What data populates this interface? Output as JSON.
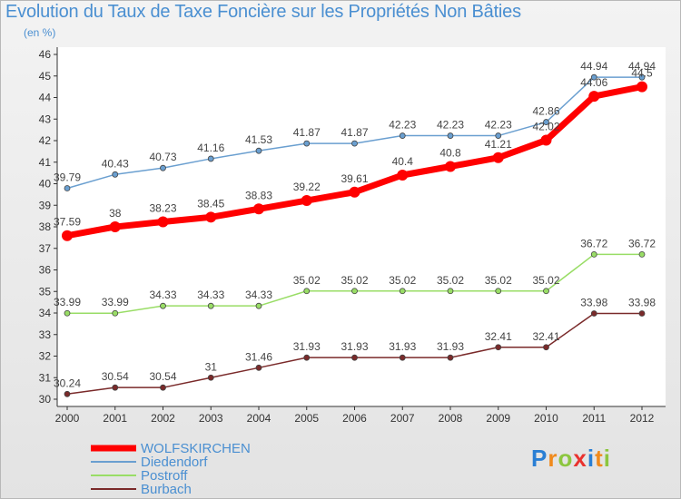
{
  "title": "Evolution du Taux de Taxe Foncière sur les Propriétés Non Bâties",
  "unit": "(en %)",
  "logo": "Proxiti",
  "chart_data": {
    "type": "line",
    "categories": [
      "2000",
      "2001",
      "2002",
      "2003",
      "2004",
      "2005",
      "2006",
      "2007",
      "2008",
      "2009",
      "2010",
      "2011",
      "2012"
    ],
    "ylim": [
      30,
      46
    ],
    "yticks": [
      30,
      31,
      32,
      33,
      34,
      35,
      36,
      37,
      38,
      39,
      40,
      41,
      42,
      43,
      44,
      45,
      46
    ],
    "grid": false,
    "legend_position": "bottom-left",
    "series": [
      {
        "name": "WOLFSKIRCHEN",
        "color": "#ff0000",
        "values": [
          37.59,
          38,
          38.23,
          38.45,
          38.83,
          39.22,
          39.61,
          40.4,
          40.8,
          41.21,
          42.02,
          44.06,
          44.5
        ]
      },
      {
        "name": "Diedendorf",
        "color": "#6a9fd0",
        "values": [
          39.79,
          40.43,
          40.73,
          41.16,
          41.53,
          41.87,
          41.87,
          42.23,
          42.23,
          42.23,
          42.86,
          44.94,
          44.94
        ]
      },
      {
        "name": "Postroff",
        "color": "#99dd66",
        "values": [
          33.99,
          33.99,
          34.33,
          34.33,
          34.33,
          35.02,
          35.02,
          35.02,
          35.02,
          35.02,
          35.02,
          36.72,
          36.72
        ]
      },
      {
        "name": "Burbach",
        "color": "#7a2a2a",
        "values": [
          30.24,
          30.54,
          30.54,
          31,
          31.46,
          31.93,
          31.93,
          31.93,
          31.93,
          32.41,
          32.41,
          33.98,
          33.98
        ]
      }
    ],
    "data_labels": [
      [
        "37.59",
        "38",
        "38.23",
        "38.45",
        "38.83",
        "39.22",
        "39.61",
        "40.4",
        "40.8",
        "41.21",
        "42.02",
        "44.06",
        "44.5"
      ],
      [
        "39.79",
        "40.43",
        "40.73",
        "41.16",
        "41.53",
        "41.87",
        "41.87",
        "42.23",
        "42.23",
        "42.23",
        "42.86",
        "44.94",
        "44.94"
      ],
      [
        "33.99",
        "33.99",
        "34.33",
        "34.33",
        "34.33",
        "35.02",
        "35.02",
        "35.02",
        "35.02",
        "35.02",
        "35.02",
        "36.72",
        "36.72"
      ],
      [
        "30.24",
        "30.54",
        "30.54",
        "31",
        "31.46",
        "31.93",
        "31.93",
        "31.93",
        "31.93",
        "32.41",
        "32.41",
        "33.98",
        "33.98"
      ]
    ]
  }
}
